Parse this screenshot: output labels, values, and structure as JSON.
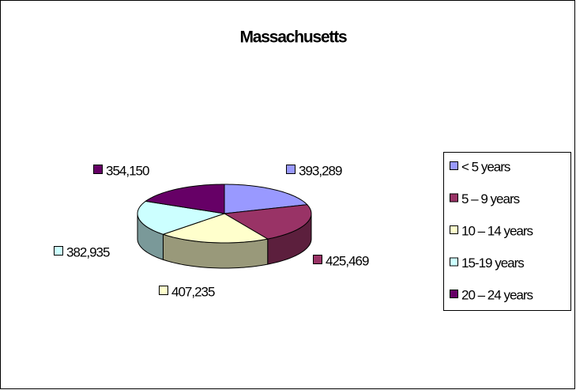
{
  "chart_data": {
    "type": "pie",
    "title": "Massachusetts",
    "categories": [
      "< 5 years",
      "5 – 9 years",
      "10 – 14 years",
      "15-19 years",
      "20 – 24 years"
    ],
    "values": [
      393289,
      425469,
      407235,
      382935,
      354150
    ],
    "value_labels": [
      "393,289",
      "425,469",
      "407,235",
      "382,935",
      "354,150"
    ],
    "colors": [
      "#9999ff",
      "#993366",
      "#ffffcc",
      "#ccffff",
      "#660066"
    ],
    "legend": "right"
  }
}
